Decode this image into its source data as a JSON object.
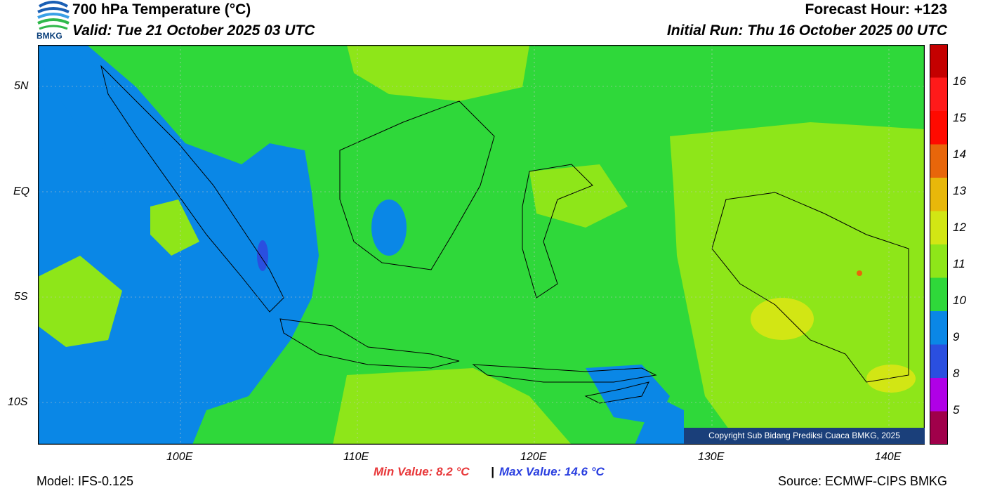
{
  "header": {
    "title": "700 hPa Temperature (°C)",
    "valid": "Valid: Tue 21 October 2025 03 UTC",
    "forecast_hour": "Forecast Hour: +123",
    "initial_run": "Initial Run: Thu 16 October 2025 00 UTC",
    "logo_text": "BMKG"
  },
  "map": {
    "lat_labels": [
      "5N",
      "EQ",
      "5S",
      "10S"
    ],
    "lon_labels": [
      "100E",
      "110E",
      "120E",
      "130E",
      "140E"
    ],
    "copyright": "Copyright Sub Bidang Prediksi Cuaca BMKG, 2025"
  },
  "colorbar": {
    "labels": [
      "16",
      "15",
      "14",
      "13",
      "12",
      "11",
      "10",
      "9",
      "8",
      "5"
    ],
    "colors": [
      "#c40000",
      "#ff1a1a",
      "#ff0a00",
      "#e8660a",
      "#e8b80a",
      "#d2e614",
      "#8ee619",
      "#2fd83a",
      "#0a87e6",
      "#2a4fe0",
      "#b000e6",
      "#a0004a"
    ]
  },
  "footer": {
    "model": "Model: IFS-0.125",
    "min_value": "Min Value: 8.2 °C",
    "separator": "|",
    "max_value": "Max Value: 14.6 °C",
    "source": "Source: ECMWF-CIPS BMKG"
  },
  "legend_colors": {
    "green": "#2fd83a",
    "lime": "#8ee619",
    "yellow": "#d2e614",
    "blue": "#0a87e6",
    "deep_blue": "#2a4fe0"
  }
}
